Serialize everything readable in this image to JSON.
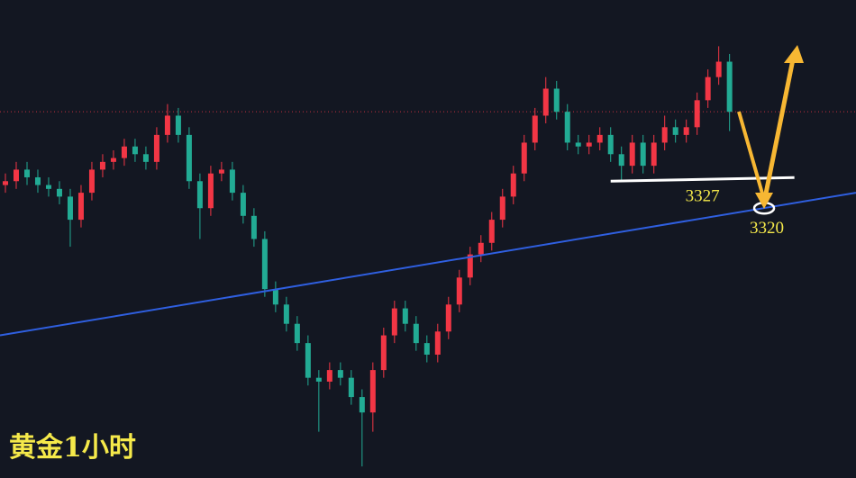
{
  "chart_data": {
    "type": "candlestick",
    "title": "黄金1小时",
    "up_color": "#f23645",
    "down_color": "#22ab94",
    "xlim": [
      -0.5,
      78.7
    ],
    "ylim": [
      3250,
      3374
    ],
    "open": [
      3326,
      3327,
      3330,
      3328,
      3326,
      3325,
      3323,
      3317,
      3324,
      3330,
      3332,
      3333,
      3336,
      3334,
      3332,
      3339,
      3344,
      3339,
      3327,
      3320,
      3329,
      3330,
      3324,
      3318,
      3312,
      3299,
      3295,
      3290,
      3285,
      3276,
      3275,
      3278,
      3276,
      3271,
      3267,
      3278,
      3287,
      3294,
      3290,
      3285,
      3282,
      3288,
      3295,
      3302,
      3308,
      3311,
      3317,
      3323,
      3329,
      3337,
      3344,
      3351,
      3345,
      3337,
      3336,
      3337,
      3339,
      3334,
      3331,
      3337,
      3331,
      3337,
      3341,
      3339,
      3341,
      3348,
      3354,
      3358
    ],
    "high": [
      3329,
      3332,
      3332,
      3330,
      3328,
      3327,
      3325,
      3326,
      3332,
      3334,
      3335,
      3338,
      3338,
      3336,
      3341,
      3347,
      3346,
      3341,
      3329,
      3331,
      3332,
      3332,
      3326,
      3320,
      3314,
      3301,
      3297,
      3292,
      3287,
      3278,
      3280,
      3280,
      3278,
      3273,
      3280,
      3289,
      3296,
      3296,
      3292,
      3287,
      3290,
      3297,
      3304,
      3310,
      3313,
      3319,
      3325,
      3331,
      3339,
      3346,
      3354,
      3353,
      3347,
      3339,
      3339,
      3341,
      3341,
      3336,
      3339,
      3339,
      3339,
      3344,
      3343,
      3343,
      3350,
      3356,
      3362,
      3360
    ],
    "low": [
      3324,
      3325,
      3326,
      3324,
      3323,
      3321,
      3310,
      3315,
      3322,
      3328,
      3330,
      3331,
      3332,
      3330,
      3330,
      3337,
      3337,
      3325,
      3312,
      3318,
      3327,
      3322,
      3316,
      3310,
      3297,
      3293,
      3288,
      3283,
      3274,
      3262,
      3273,
      3274,
      3269,
      3253,
      3262,
      3276,
      3285,
      3288,
      3283,
      3280,
      3280,
      3286,
      3293,
      3300,
      3306,
      3309,
      3315,
      3321,
      3327,
      3335,
      3342,
      3343,
      3335,
      3334,
      3334,
      3335,
      3332,
      3327,
      3329,
      3329,
      3329,
      3335,
      3337,
      3337,
      3339,
      3346,
      3352,
      3340
    ],
    "close": [
      3327,
      3330,
      3328,
      3326,
      3325,
      3323,
      3317,
      3324,
      3330,
      3332,
      3333,
      3336,
      3334,
      3332,
      3339,
      3344,
      3339,
      3327,
      3320,
      3329,
      3330,
      3324,
      3318,
      3312,
      3299,
      3295,
      3290,
      3285,
      3276,
      3275,
      3278,
      3276,
      3271,
      3267,
      3278,
      3287,
      3294,
      3290,
      3285,
      3282,
      3288,
      3295,
      3302,
      3308,
      3311,
      3317,
      3323,
      3329,
      3337,
      3344,
      3351,
      3345,
      3337,
      3336,
      3337,
      3339,
      3334,
      3331,
      3337,
      3331,
      3337,
      3341,
      3339,
      3341,
      3348,
      3354,
      3358,
      3345
    ],
    "price_line": {
      "value": 3345,
      "color": "#f23645"
    },
    "trendline": {
      "x": [
        -0.5,
        78.7
      ],
      "y": [
        3287,
        3324
      ],
      "color": "#2f5fe0"
    },
    "support": {
      "value": 3327,
      "label": "3327",
      "x": [
        56,
        73
      ],
      "color": "#ffffff"
    },
    "target": {
      "value": 3320,
      "label": "3320",
      "x": 70.2,
      "color": "#ffffff"
    }
  }
}
